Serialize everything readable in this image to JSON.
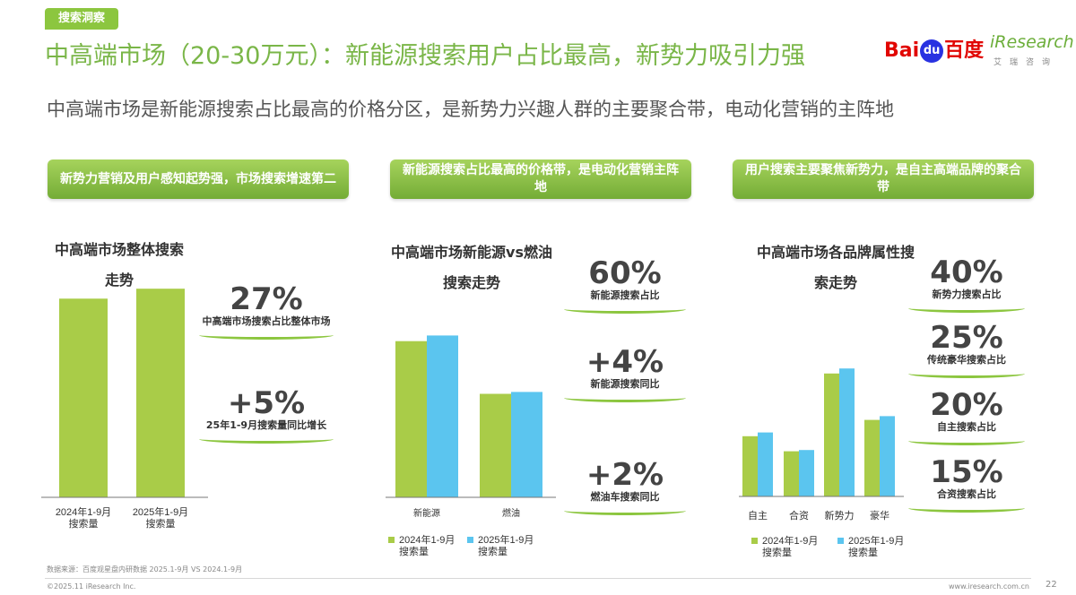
{
  "tag": "搜索洞察",
  "title": "中高端市场（20-30万元）：新能源搜索用户占比最高，新势力吸引力强",
  "subtitle": "中高端市场是新能源搜索占比最高的价格分区，是新势力兴趣人群的主要聚合带，电动化营销的主阵地",
  "logos": {
    "baidu_a": "Bai",
    "baidu_du": "du",
    "baidu_b": "百度",
    "iresearch": "iResearch",
    "iresearch_sub": "艾瑞咨询"
  },
  "colors": {
    "accent": "#8cc63f",
    "series_2024": "#a9cc48",
    "series_2025": "#5bc5ef"
  },
  "banners": [
    "新势力营销及用户感知起势强，市场搜索增速第二",
    "新能源搜索占比最高的价格带，是电动化营销主阵地",
    "用户搜索主要聚焦新势力，是自主高端品牌的聚合带"
  ],
  "panel1": {
    "title": "中高端市场整体搜索走势",
    "stats": [
      {
        "num": "27%",
        "label": "中高端市场搜索占比整体市场"
      },
      {
        "num": "+5%",
        "label": "25年1-9月搜索量同比增长"
      }
    ]
  },
  "panel2": {
    "title": "中高端市场新能源vs燃油搜索走势",
    "stats": [
      {
        "num": "60%",
        "label": "新能源搜索占比"
      },
      {
        "num": "+4%",
        "label": "新能源搜索同比"
      },
      {
        "num": "+2%",
        "label": "燃油车搜索同比"
      }
    ]
  },
  "panel3": {
    "title": "中高端市场各品牌属性搜索走势",
    "stats": [
      {
        "num": "40%",
        "label": "新势力搜索占比"
      },
      {
        "num": "25%",
        "label": "传统豪华搜索占比"
      },
      {
        "num": "20%",
        "label": "自主搜索占比"
      },
      {
        "num": "15%",
        "label": "合资搜索占比"
      }
    ]
  },
  "chart_data": [
    {
      "type": "bar",
      "categories": [
        "2024年1-9月\n搜索量",
        "2025年1-9月\n搜索量"
      ],
      "values": [
        100,
        105
      ],
      "ylim": [
        0,
        115
      ]
    },
    {
      "type": "bar",
      "categories": [
        "新能源",
        "燃油"
      ],
      "series": [
        {
          "name": "2024年1-9月\n搜索量",
          "values": [
            83,
            55
          ]
        },
        {
          "name": "2025年1-9月\n搜索量",
          "values": [
            86,
            56
          ]
        }
      ],
      "ylim": [
        0,
        100
      ]
    },
    {
      "type": "bar",
      "categories": [
        "自主",
        "合资",
        "新势力",
        "豪华"
      ],
      "series": [
        {
          "name": "2024年1-9月\n搜索量",
          "values": [
            48,
            36,
            98,
            61
          ]
        },
        {
          "name": "2025年1-9月\n搜索量",
          "values": [
            51,
            37,
            102,
            64
          ]
        }
      ],
      "ylim": [
        0,
        100
      ]
    }
  ],
  "footer": {
    "source": "数据来源：百度观星盘内研数据 2025.1-9月 VS 2024.1-9月",
    "copyright": "©2025.11 iResearch Inc.",
    "website": "www.iresearch.com.cn",
    "page": "22"
  }
}
